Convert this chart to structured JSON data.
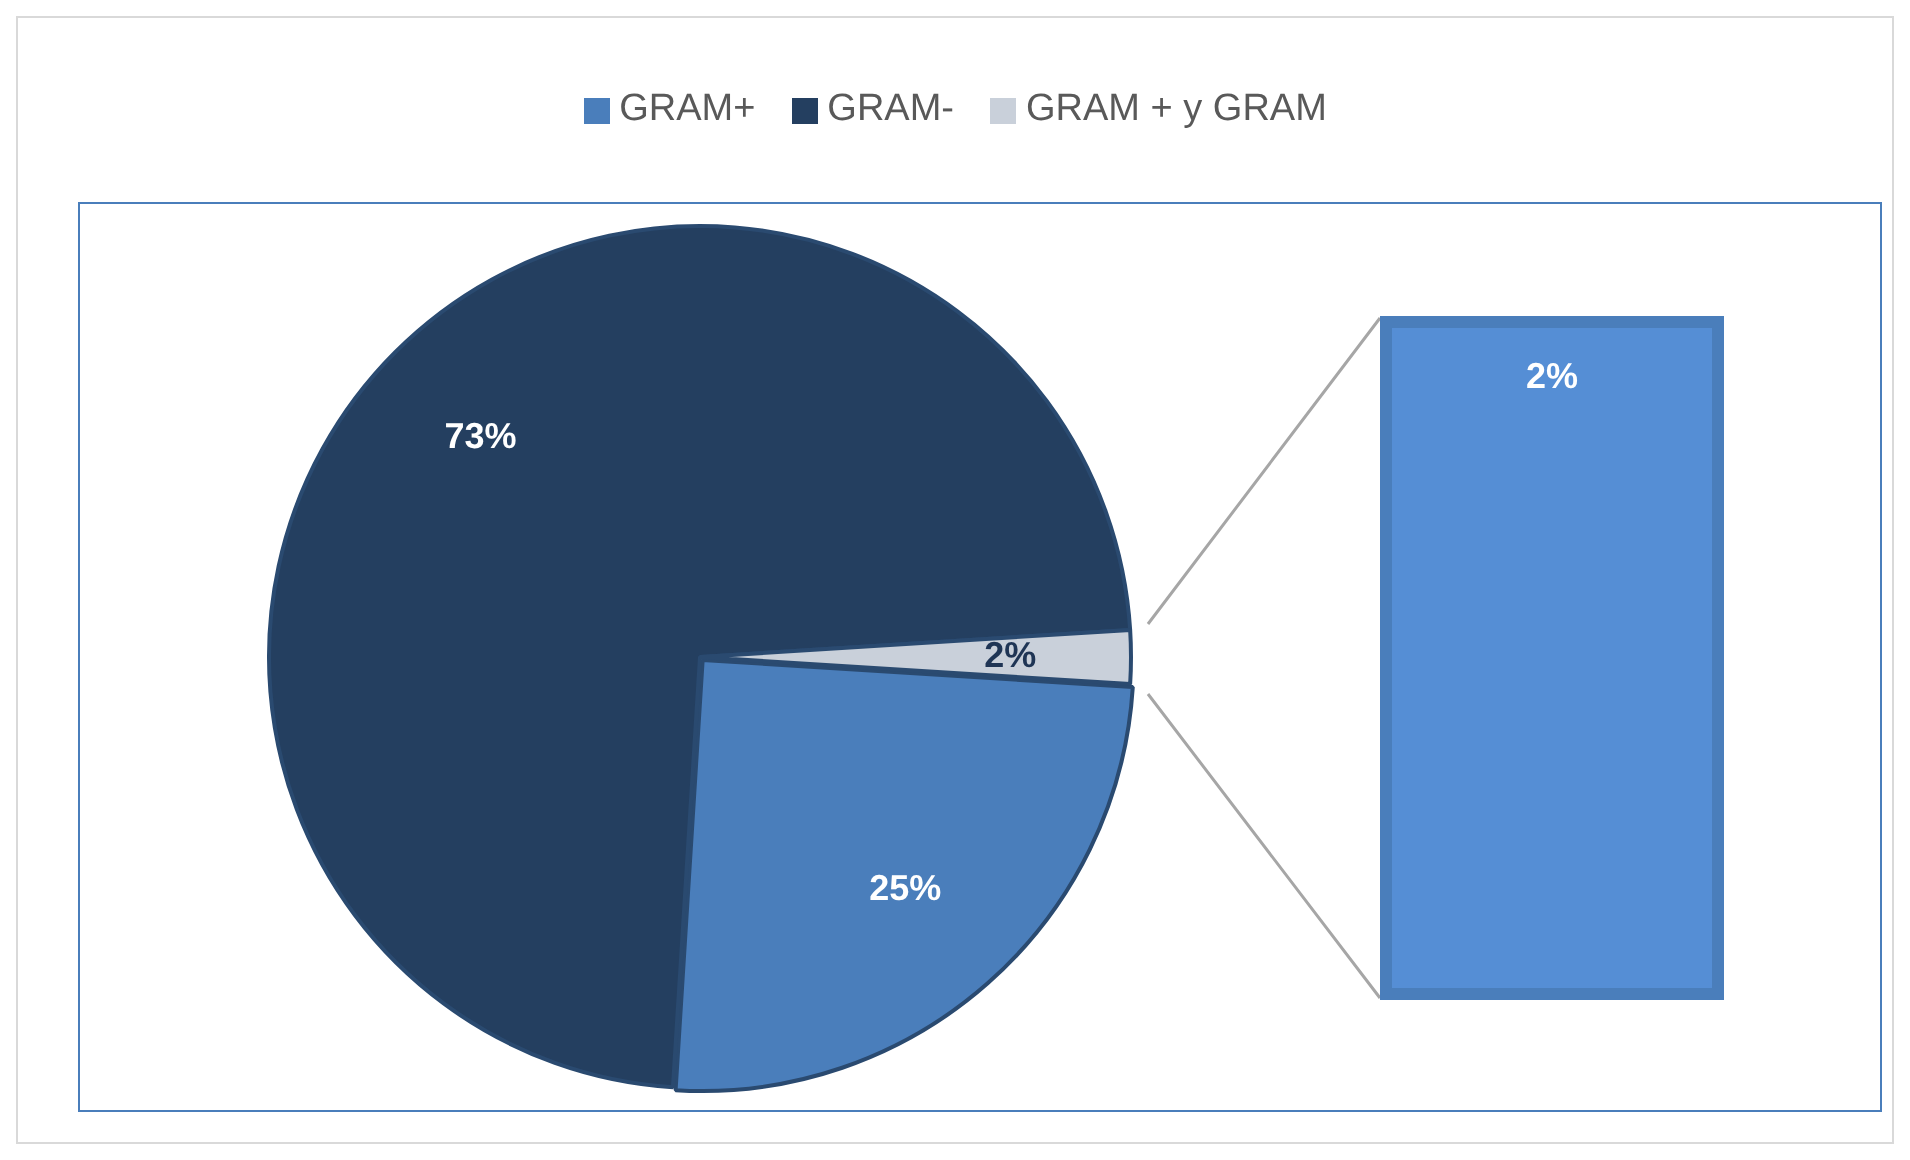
{
  "chart_data": {
    "type": "pie",
    "legend": "top",
    "categories": [
      "GRAM+",
      "GRAM-",
      "GRAM + y GRAM"
    ],
    "values": [
      25,
      73,
      2
    ],
    "colors": [
      "#4a7ebb",
      "#243f60",
      "#c9d0da"
    ],
    "value_labels": [
      "25%",
      "73%",
      "2%"
    ]
  }
}
